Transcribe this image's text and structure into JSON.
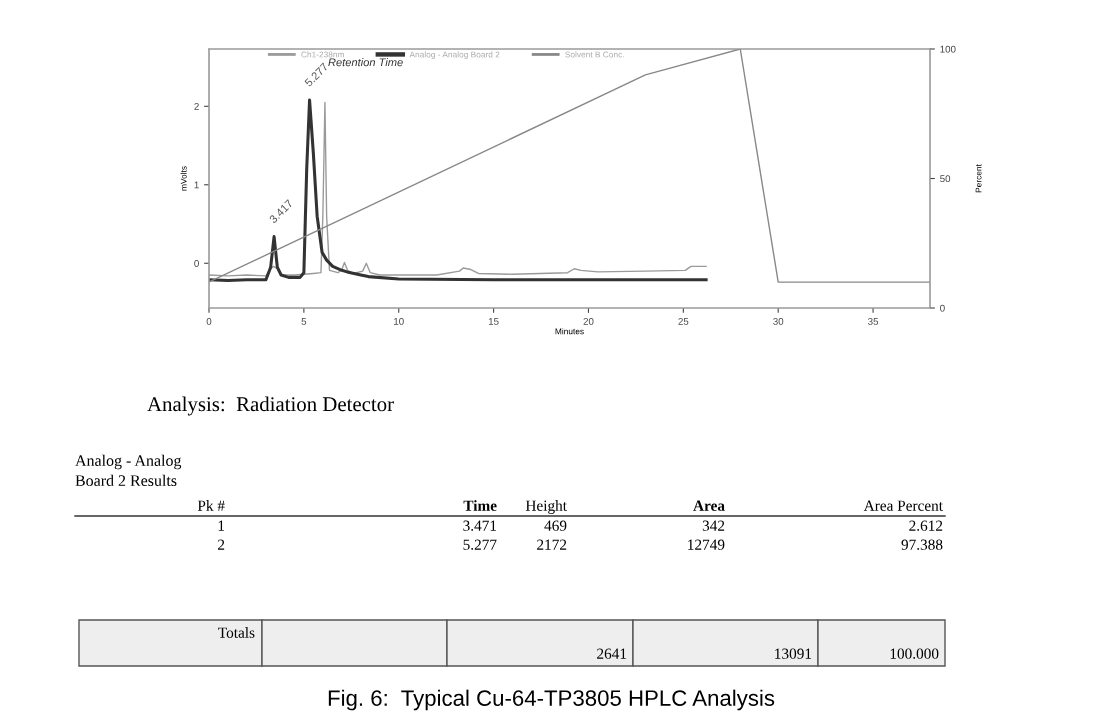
{
  "chart_data": {
    "type": "line",
    "title": "Fig. 6:  Typical Cu-64-TP3805 HPLC Analysis",
    "xlabel": "Minutes",
    "ylabel": "mVolts",
    "y2label": "Percent",
    "xlim": [
      0,
      38
    ],
    "xticks": [
      0,
      5,
      10,
      15,
      20,
      25,
      30,
      35
    ],
    "ylim": [
      -0.57,
      2.73
    ],
    "yticks": [
      0,
      1,
      2
    ],
    "y2lim": [
      0,
      100
    ],
    "y2ticks": [
      0,
      50,
      100
    ],
    "legend": "top",
    "grid": false,
    "marker": "none",
    "line_style": "solid",
    "series": [
      {
        "name": "Ch1-238nm",
        "color": "#9a9a9a",
        "x": [
          0,
          1,
          2,
          3,
          3.2,
          3.4,
          3.6,
          3.8,
          4.5,
          5.0,
          5.5,
          5.9,
          6.0,
          6.11,
          6.2,
          6.35,
          6.8,
          7.0,
          7.14,
          7.3,
          7.6,
          8.1,
          8.29,
          8.5,
          9,
          12,
          13.2,
          13.4,
          13.8,
          14.2,
          16,
          18.9,
          19.25,
          19.6,
          20.5,
          23,
          25.1,
          25.4,
          26.2
        ],
        "values": [
          -0.15,
          -0.16,
          -0.15,
          -0.16,
          -0.08,
          -0.04,
          -0.07,
          -0.15,
          -0.15,
          -0.14,
          -0.13,
          -0.12,
          0.6,
          2.05,
          0.6,
          -0.09,
          -0.12,
          -0.08,
          0.01,
          -0.09,
          -0.13,
          -0.1,
          0.0,
          -0.12,
          -0.15,
          -0.15,
          -0.1,
          -0.06,
          -0.08,
          -0.13,
          -0.14,
          -0.12,
          -0.07,
          -0.09,
          -0.11,
          -0.1,
          -0.09,
          -0.04,
          -0.04
        ]
      },
      {
        "name": "Analog - Analog Board 2",
        "color": "#333333",
        "x": [
          0,
          1,
          2,
          3,
          3.25,
          3.43,
          3.6,
          3.8,
          4.2,
          4.8,
          5.0,
          5.15,
          5.3,
          5.5,
          5.7,
          5.96,
          6.2,
          6.52,
          7.0,
          7.28,
          8.0,
          8.4,
          10,
          15,
          20,
          26.2
        ],
        "values": [
          -0.21,
          -0.22,
          -0.21,
          -0.21,
          -0.05,
          0.34,
          -0.05,
          -0.15,
          -0.18,
          -0.18,
          -0.12,
          1.2,
          2.08,
          1.4,
          0.6,
          0.14,
          0.04,
          -0.04,
          -0.09,
          -0.11,
          -0.15,
          -0.17,
          -0.2,
          -0.21,
          -0.21,
          -0.21
        ]
      },
      {
        "name": "Solvent B Conc.",
        "color": "#888888",
        "axis": "y2",
        "x": [
          0,
          23,
          28,
          30,
          38
        ],
        "values": [
          10,
          90,
          100,
          10,
          10
        ]
      }
    ],
    "annotations": [
      {
        "text": "3.417",
        "x": 3.417,
        "y": 0.34
      },
      {
        "text": "5.277",
        "x": 5.277,
        "y": 2.08
      },
      "Retention Time",
      "Analysis:  Radiation Detector",
      "Analog - Analog",
      "Board 2 Results",
      "Pk #",
      "Time",
      "Height",
      "Area",
      "Area Percent",
      "1",
      "3.471",
      "469",
      "342",
      "2.612",
      "2",
      "5.277",
      "2172",
      "12749",
      "97.388",
      "Totals",
      "2641",
      "13091",
      "100.000"
    ]
  }
}
